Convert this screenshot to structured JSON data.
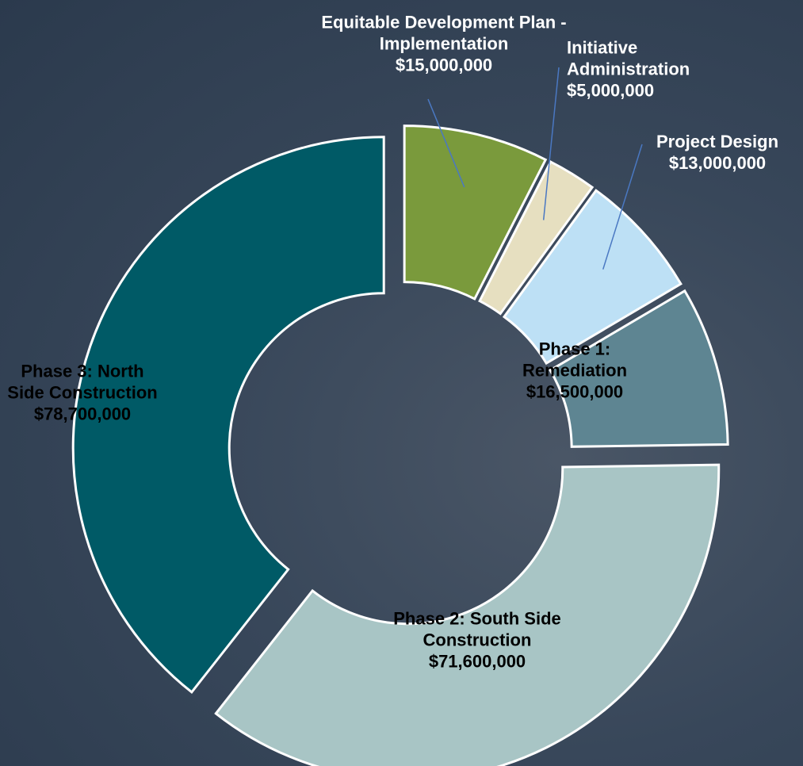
{
  "chart_data": {
    "type": "donut",
    "categories": [
      "Equitable Development Plan - Implementation",
      "Initiative Administration",
      "Project Design",
      "Phase 1: Remediation",
      "Phase 2: South Side Construction",
      "Phase 3: North Side Construction"
    ],
    "values": [
      15000000,
      5000000,
      13000000,
      16500000,
      71600000,
      78700000
    ],
    "value_labels": [
      "$15,000,000",
      "$5,000,000",
      "$13,000,000",
      "$16,500,000",
      "$71,600,000",
      "$78,700,000"
    ],
    "colors": [
      "#7a9a3c",
      "#e6dfc0",
      "#bde0f5",
      "#5e8592",
      "#a8c5c5",
      "#005a66"
    ]
  }
}
